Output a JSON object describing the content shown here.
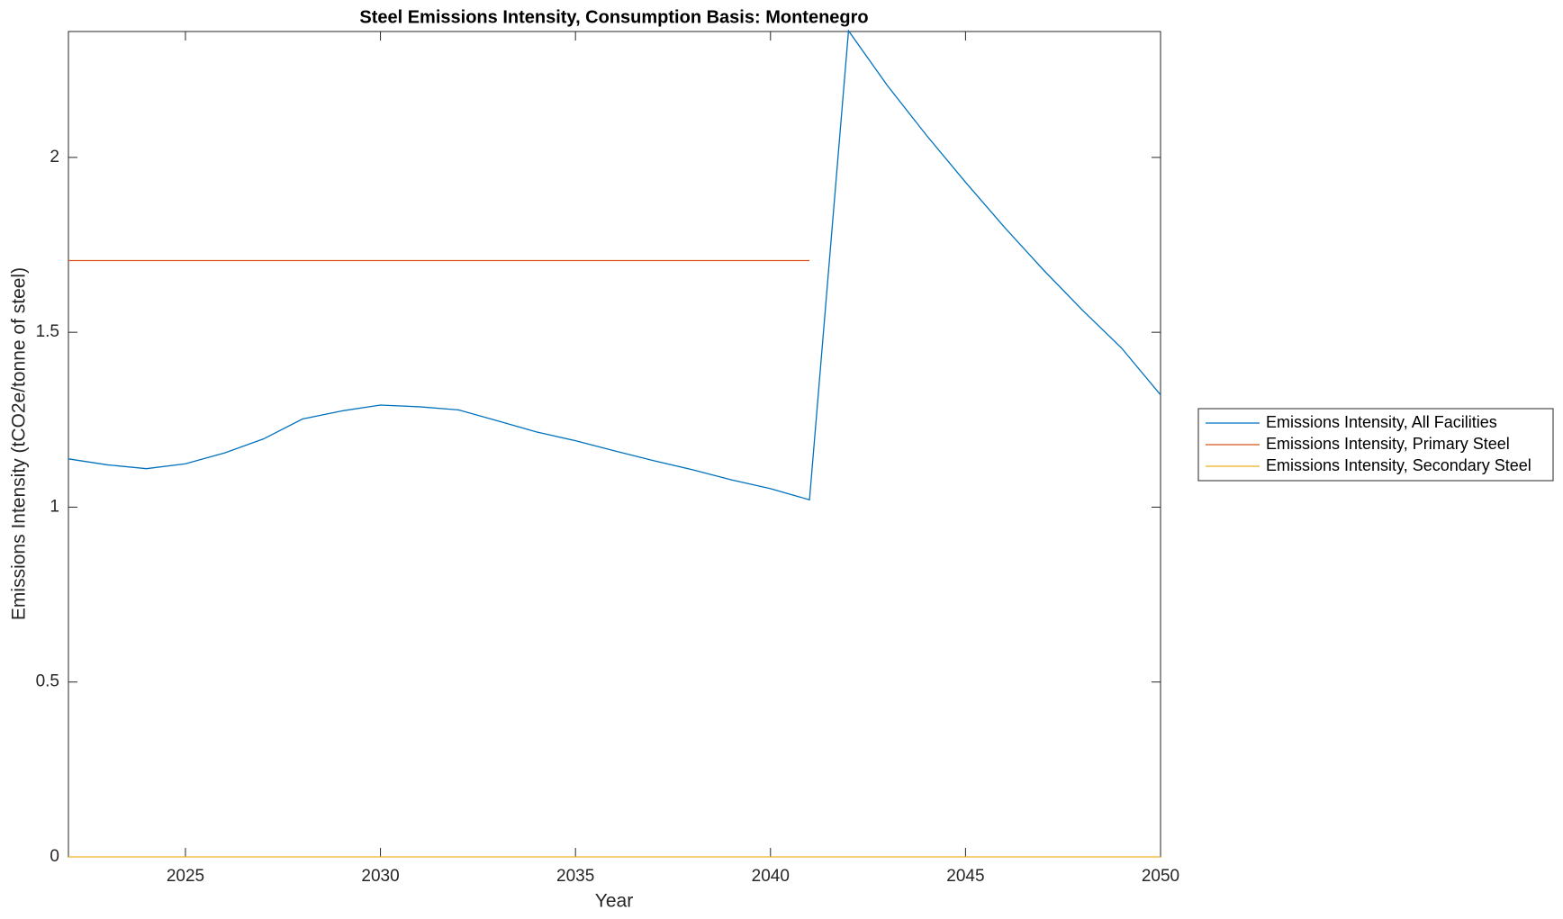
{
  "chart_data": {
    "type": "line",
    "title": "Steel Emissions Intensity, Consumption Basis: Montenegro",
    "xlabel": "Year",
    "ylabel": "Emissions Intensity (tCO2e/tonne of steel)",
    "x": [
      2022,
      2023,
      2024,
      2025,
      2026,
      2027,
      2028,
      2029,
      2030,
      2031,
      2032,
      2033,
      2034,
      2035,
      2036,
      2037,
      2038,
      2039,
      2040,
      2041,
      2042,
      2043,
      2044,
      2045,
      2046,
      2047,
      2048,
      2049,
      2050
    ],
    "series": [
      {
        "name": "Emissions Intensity, All Facilities",
        "color": "#0072BD",
        "values": [
          1.138,
          1.121,
          1.11,
          1.124,
          1.155,
          1.195,
          1.252,
          1.275,
          1.292,
          1.287,
          1.278,
          1.247,
          1.215,
          1.19,
          1.161,
          1.133,
          1.107,
          1.078,
          1.053,
          1.021,
          2.362,
          2.205,
          2.063,
          1.929,
          1.8,
          1.678,
          1.563,
          1.455,
          1.321
        ]
      },
      {
        "name": "Emissions Intensity, Primary Steel",
        "color": "#D95319",
        "values": [
          1.705,
          1.705,
          1.705,
          1.705,
          1.705,
          1.705,
          1.705,
          1.705,
          1.705,
          1.705,
          1.705,
          1.705,
          1.705,
          1.705,
          1.705,
          1.705,
          1.705,
          1.705,
          1.705,
          1.705,
          null,
          null,
          null,
          null,
          null,
          null,
          null,
          null,
          null
        ]
      },
      {
        "name": "Emissions Intensity, Secondary Steel",
        "color": "#EDB120",
        "values": [
          0,
          0,
          0,
          0,
          0,
          0,
          0,
          0,
          0,
          0,
          0,
          0,
          0,
          0,
          0,
          0,
          0,
          0,
          0,
          0,
          0,
          0,
          0,
          0,
          0,
          0,
          0,
          0,
          0
        ]
      }
    ],
    "xlim": [
      2022,
      2050
    ],
    "xticks": [
      2025,
      2030,
      2035,
      2040,
      2045,
      2050
    ],
    "ylim": [
      0,
      2.36
    ],
    "yticks": [
      0,
      0.5,
      1,
      1.5,
      2
    ],
    "legend": "outside-right"
  }
}
